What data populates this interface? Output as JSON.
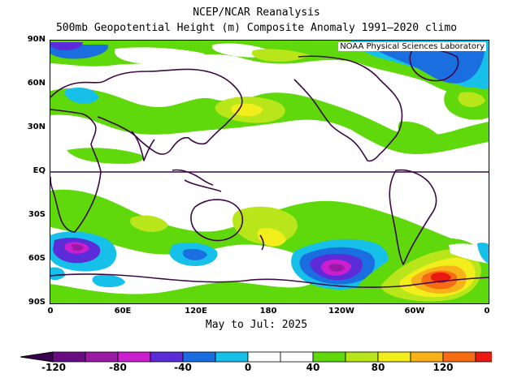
{
  "title_line1": "NCEP/NCAR Reanalysis",
  "title_line2": "500mb Geopotential Height (m) Composite Anomaly 1991–2020 climo",
  "credit": "NOAA Physical Sciences Laboratory",
  "y_axis": [
    "90N",
    "60N",
    "30N",
    "EQ",
    "30S",
    "60S",
    "90S"
  ],
  "x_axis": [
    "0",
    "60E",
    "120E",
    "180",
    "120W",
    "60W",
    "0"
  ],
  "caption": "May to Jul: 2025",
  "colorbar": {
    "labels": [
      "-120",
      "-80",
      "-40",
      "0",
      "40",
      "80",
      "120"
    ],
    "colors": [
      "#6a0d85",
      "#9a1aa6",
      "#c91fcf",
      "#5b2cd8",
      "#1a6ee0",
      "#16c0e8",
      "#ffffff",
      "#ffffff",
      "#5fd80c",
      "#b8e61a",
      "#f2ee1c",
      "#f7b21a",
      "#f56c14",
      "#e81a12"
    ],
    "end_low": "#3a0050",
    "end_high": "#d4001c"
  },
  "colors": {
    "coast": "#3b0a45",
    "frame": "#000000"
  }
}
